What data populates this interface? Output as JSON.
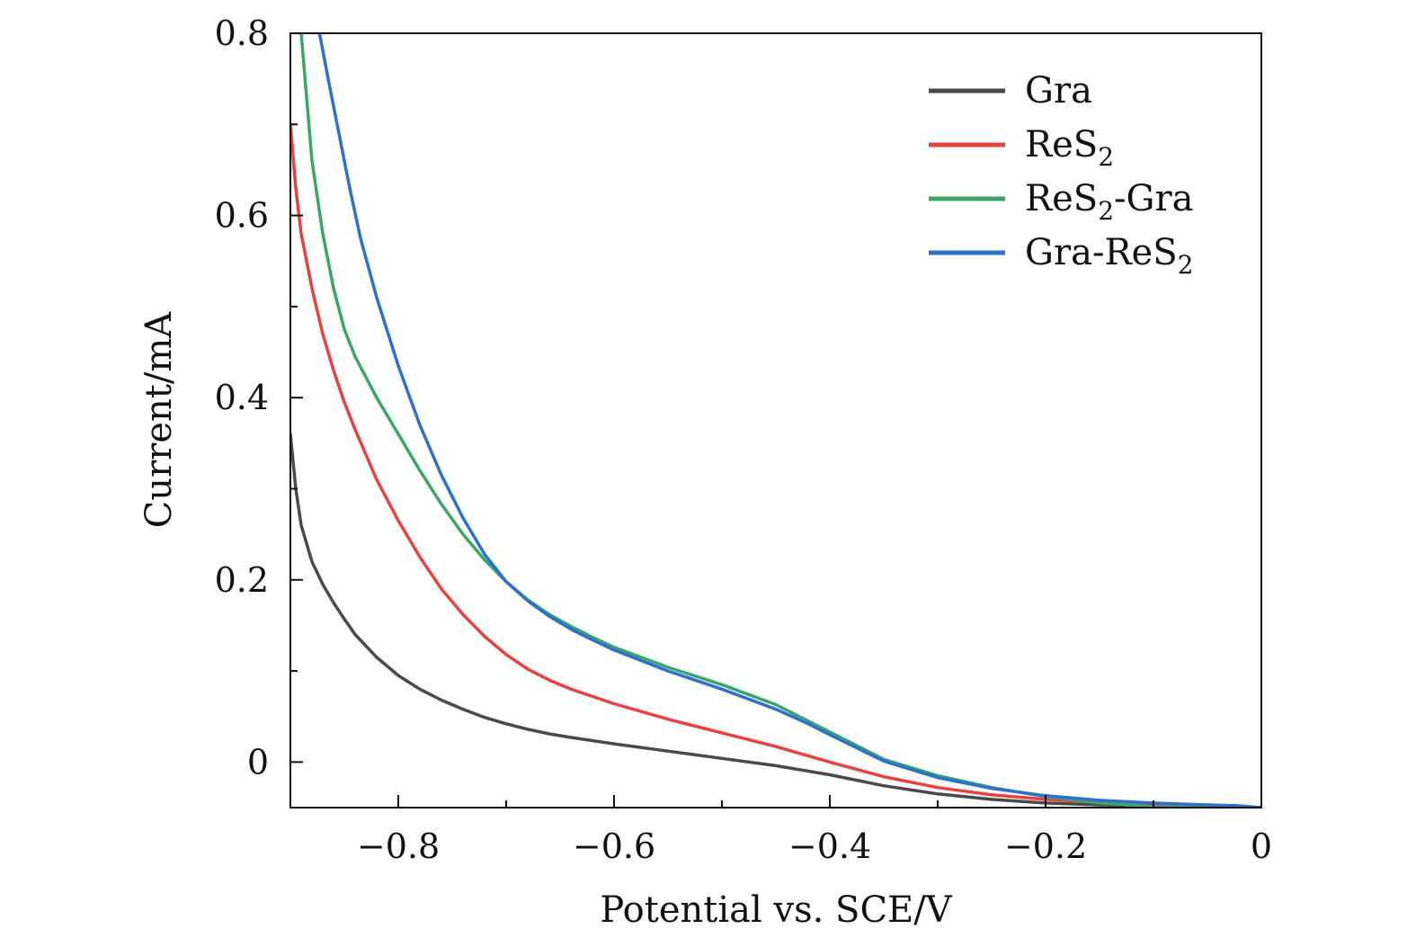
{
  "chart_data": {
    "type": "line",
    "xlabel": "Potential vs. SCE/V",
    "ylabel": "Current/mA",
    "xlim": [
      -0.9,
      0.0
    ],
    "ylim": [
      -0.05,
      0.8
    ],
    "x_ticks": [
      {
        "value": -0.8,
        "label": "−0.8"
      },
      {
        "value": -0.6,
        "label": "−0.6"
      },
      {
        "value": -0.4,
        "label": "−0.4"
      },
      {
        "value": -0.2,
        "label": "−0.2"
      },
      {
        "value": 0.0,
        "label": "0"
      }
    ],
    "x_minor_ticks": [
      -0.7,
      -0.5,
      -0.3,
      -0.1
    ],
    "y_ticks": [
      {
        "value": 0.0,
        "label": "0"
      },
      {
        "value": 0.2,
        "label": "0.2"
      },
      {
        "value": 0.4,
        "label": "0.4"
      },
      {
        "value": 0.6,
        "label": "0.6"
      },
      {
        "value": 0.8,
        "label": "0.8"
      }
    ],
    "y_minor_ticks": [
      0.1,
      0.3,
      0.5,
      0.7
    ],
    "grid": false,
    "legend_position": "top-right",
    "series": [
      {
        "name": "Gra",
        "legend_main": "Gra",
        "legend_sub": "",
        "legend_tail": "",
        "color": "#4a4a4a",
        "points": [
          [
            -0.9,
            0.36
          ],
          [
            -0.895,
            0.3
          ],
          [
            -0.89,
            0.26
          ],
          [
            -0.88,
            0.22
          ],
          [
            -0.87,
            0.195
          ],
          [
            -0.86,
            0.175
          ],
          [
            -0.85,
            0.157
          ],
          [
            -0.84,
            0.14
          ],
          [
            -0.82,
            0.115
          ],
          [
            -0.8,
            0.095
          ],
          [
            -0.78,
            0.08
          ],
          [
            -0.76,
            0.068
          ],
          [
            -0.74,
            0.058
          ],
          [
            -0.72,
            0.049
          ],
          [
            -0.7,
            0.042
          ],
          [
            -0.68,
            0.036
          ],
          [
            -0.66,
            0.031
          ],
          [
            -0.64,
            0.027
          ],
          [
            -0.6,
            0.02
          ],
          [
            -0.55,
            0.012
          ],
          [
            -0.5,
            0.004
          ],
          [
            -0.45,
            -0.004
          ],
          [
            -0.4,
            -0.014
          ],
          [
            -0.35,
            -0.026
          ],
          [
            -0.3,
            -0.035
          ],
          [
            -0.25,
            -0.041
          ],
          [
            -0.2,
            -0.045
          ],
          [
            -0.15,
            -0.047
          ],
          [
            -0.1,
            -0.048
          ],
          [
            -0.05,
            -0.049
          ],
          [
            0.0,
            -0.05
          ]
        ]
      },
      {
        "name": "ReS2",
        "legend_main": "ReS",
        "legend_sub": "2",
        "legend_tail": "",
        "color": "#e8423f",
        "points": [
          [
            -0.9,
            0.7
          ],
          [
            -0.895,
            0.63
          ],
          [
            -0.89,
            0.58
          ],
          [
            -0.88,
            0.52
          ],
          [
            -0.87,
            0.47
          ],
          [
            -0.86,
            0.43
          ],
          [
            -0.85,
            0.395
          ],
          [
            -0.84,
            0.365
          ],
          [
            -0.82,
            0.31
          ],
          [
            -0.8,
            0.265
          ],
          [
            -0.78,
            0.225
          ],
          [
            -0.76,
            0.19
          ],
          [
            -0.74,
            0.162
          ],
          [
            -0.72,
            0.138
          ],
          [
            -0.7,
            0.118
          ],
          [
            -0.68,
            0.102
          ],
          [
            -0.66,
            0.09
          ],
          [
            -0.64,
            0.08
          ],
          [
            -0.6,
            0.064
          ],
          [
            -0.55,
            0.047
          ],
          [
            -0.5,
            0.032
          ],
          [
            -0.45,
            0.017
          ],
          [
            -0.4,
            0.0
          ],
          [
            -0.35,
            -0.016
          ],
          [
            -0.3,
            -0.028
          ],
          [
            -0.25,
            -0.036
          ],
          [
            -0.2,
            -0.041
          ],
          [
            -0.15,
            -0.044
          ],
          [
            -0.1,
            -0.046
          ],
          [
            -0.05,
            -0.048
          ],
          [
            0.0,
            -0.05
          ]
        ]
      },
      {
        "name": "ReS2-Gra",
        "legend_main": "ReS",
        "legend_sub": "2",
        "legend_tail": "-Gra",
        "color": "#3aa66a",
        "points": [
          [
            -0.89,
            0.8
          ],
          [
            -0.885,
            0.73
          ],
          [
            -0.88,
            0.66
          ],
          [
            -0.87,
            0.58
          ],
          [
            -0.86,
            0.52
          ],
          [
            -0.85,
            0.475
          ],
          [
            -0.84,
            0.445
          ],
          [
            -0.82,
            0.4
          ],
          [
            -0.8,
            0.36
          ],
          [
            -0.78,
            0.32
          ],
          [
            -0.76,
            0.283
          ],
          [
            -0.74,
            0.25
          ],
          [
            -0.72,
            0.222
          ],
          [
            -0.7,
            0.198
          ],
          [
            -0.68,
            0.178
          ],
          [
            -0.66,
            0.162
          ],
          [
            -0.64,
            0.149
          ],
          [
            -0.62,
            0.137
          ],
          [
            -0.6,
            0.126
          ],
          [
            -0.55,
            0.104
          ],
          [
            -0.5,
            0.085
          ],
          [
            -0.45,
            0.063
          ],
          [
            -0.42,
            0.045
          ],
          [
            -0.4,
            0.033
          ],
          [
            -0.35,
            0.003
          ],
          [
            -0.3,
            -0.015
          ],
          [
            -0.25,
            -0.028
          ],
          [
            -0.2,
            -0.038
          ],
          [
            -0.15,
            -0.045
          ],
          [
            -0.1,
            -0.049
          ],
          [
            -0.05,
            -0.05
          ],
          [
            0.0,
            -0.05
          ]
        ]
      },
      {
        "name": "Gra-ReS2",
        "legend_main": "Gra-ReS",
        "legend_sub": "2",
        "legend_tail": "",
        "color": "#2f6fce",
        "points": [
          [
            -0.873,
            0.8
          ],
          [
            -0.865,
            0.75
          ],
          [
            -0.855,
            0.69
          ],
          [
            -0.845,
            0.63
          ],
          [
            -0.835,
            0.575
          ],
          [
            -0.82,
            0.51
          ],
          [
            -0.8,
            0.435
          ],
          [
            -0.78,
            0.37
          ],
          [
            -0.76,
            0.315
          ],
          [
            -0.74,
            0.268
          ],
          [
            -0.72,
            0.228
          ],
          [
            -0.7,
            0.198
          ],
          [
            -0.68,
            0.177
          ],
          [
            -0.66,
            0.16
          ],
          [
            -0.64,
            0.146
          ],
          [
            -0.62,
            0.134
          ],
          [
            -0.6,
            0.123
          ],
          [
            -0.55,
            0.1
          ],
          [
            -0.5,
            0.08
          ],
          [
            -0.45,
            0.058
          ],
          [
            -0.42,
            0.042
          ],
          [
            -0.4,
            0.03
          ],
          [
            -0.35,
            0.001
          ],
          [
            -0.3,
            -0.017
          ],
          [
            -0.25,
            -0.029
          ],
          [
            -0.2,
            -0.037
          ],
          [
            -0.15,
            -0.042
          ],
          [
            -0.1,
            -0.045
          ],
          [
            -0.05,
            -0.047
          ],
          [
            -0.02,
            -0.048
          ],
          [
            0.0,
            -0.05
          ]
        ]
      }
    ]
  }
}
